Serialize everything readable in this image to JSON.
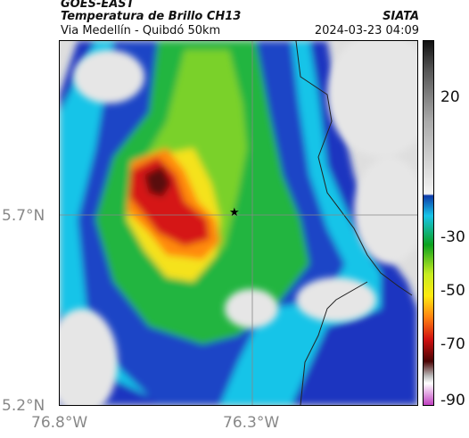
{
  "header": {
    "satellite": "GOES-EAST",
    "product": "Temperatura de Brillo CH13",
    "route": "Via Medellín - Quibdó 50km",
    "organization": "SIATA",
    "timestamp": "2024-03-23 04:09"
  },
  "axes": {
    "y_ticks": [
      "5.7°N",
      "5.2°N"
    ],
    "x_ticks": [
      "76.8°W",
      "76.3°W"
    ]
  },
  "colorbar": {
    "ticks": [
      "20",
      "-30",
      "-50",
      "-70",
      "-90"
    ],
    "colors": [
      "#1a1a1a",
      "#f0f0f0",
      "#0050a0",
      "#00c8e6",
      "#0a9a0a",
      "#ffff00",
      "#ff7800",
      "#cc0000",
      "#300000",
      "#dddddd",
      "#c040c0"
    ]
  },
  "marker": {
    "icon": "star-icon"
  },
  "colors": {
    "cloud_free": "#dedede",
    "water_green": "#29b53a",
    "blue_deep": "#1730b8",
    "cyan": "#17d3ef",
    "red": "#cc1010"
  }
}
